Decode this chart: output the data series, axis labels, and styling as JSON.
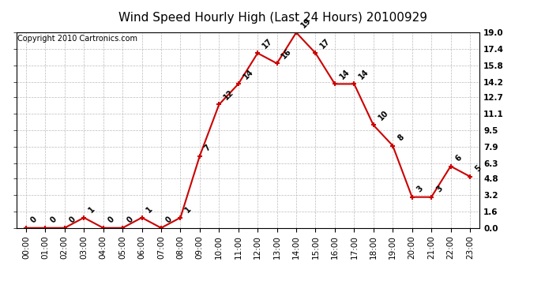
{
  "title": "Wind Speed Hourly High (Last 24 Hours) 20100929",
  "copyright": "Copyright 2010 Cartronics.com",
  "hours": [
    "00:00",
    "01:00",
    "02:00",
    "03:00",
    "04:00",
    "05:00",
    "06:00",
    "07:00",
    "08:00",
    "09:00",
    "10:00",
    "11:00",
    "12:00",
    "13:00",
    "14:00",
    "15:00",
    "16:00",
    "17:00",
    "18:00",
    "19:00",
    "20:00",
    "21:00",
    "22:00",
    "23:00"
  ],
  "values": [
    0,
    0,
    0,
    1,
    0,
    0,
    1,
    0,
    1,
    7,
    12,
    14,
    17,
    16,
    19,
    17,
    14,
    14,
    10,
    8,
    3,
    3,
    6,
    5
  ],
  "line_color": "#cc0000",
  "marker_color": "#cc0000",
  "bg_color": "#ffffff",
  "grid_color": "#bbbbbb",
  "ylim": [
    0,
    19.0
  ],
  "yticks": [
    0.0,
    1.6,
    3.2,
    4.8,
    6.3,
    7.9,
    9.5,
    11.1,
    12.7,
    14.2,
    15.8,
    17.4,
    19.0
  ],
  "title_fontsize": 11,
  "copyright_fontsize": 7,
  "label_fontsize": 7,
  "tick_fontsize": 7.5
}
